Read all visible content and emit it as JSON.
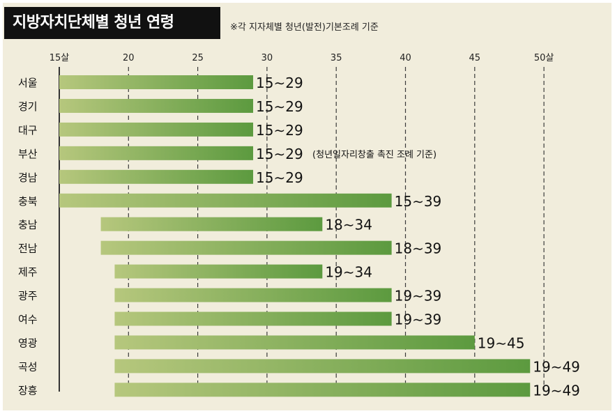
{
  "header": {
    "title": "지방자치단체별 청년 연령",
    "note": "※각 지자체별 청년(발전)기본조례 기준"
  },
  "colors": {
    "background": "#f1eddc",
    "bar_start": "#b6c77d",
    "bar_end": "#5c9a3f",
    "title_bg": "#111111"
  },
  "chart_data": {
    "type": "bar",
    "orientation": "horizontal",
    "title": "지방자치단체별 청년 연령",
    "subtitle": "※각 지자체별 청년(발전)기본조례 기준",
    "xlim": [
      15,
      50
    ],
    "x_ticks": [
      15,
      20,
      25,
      30,
      35,
      40,
      45,
      50
    ],
    "x_tick_labels": [
      "15살",
      "20",
      "25",
      "30",
      "35",
      "40",
      "45",
      "50살"
    ],
    "grid": "dashed vertical",
    "categories": [
      "서울",
      "경기",
      "대구",
      "부산",
      "경남",
      "충북",
      "충남",
      "전남",
      "제주",
      "광주",
      "여수",
      "영광",
      "곡성",
      "장흥"
    ],
    "ranges": [
      {
        "start": 15,
        "end": 29
      },
      {
        "start": 15,
        "end": 29
      },
      {
        "start": 15,
        "end": 29
      },
      {
        "start": 15,
        "end": 29
      },
      {
        "start": 15,
        "end": 29
      },
      {
        "start": 15,
        "end": 39
      },
      {
        "start": 18,
        "end": 34
      },
      {
        "start": 18,
        "end": 39
      },
      {
        "start": 19,
        "end": 34
      },
      {
        "start": 19,
        "end": 39
      },
      {
        "start": 19,
        "end": 39
      },
      {
        "start": 19,
        "end": 45
      },
      {
        "start": 19,
        "end": 49
      },
      {
        "start": 19,
        "end": 49
      }
    ],
    "labels": [
      "15∼29",
      "15∼29",
      "15∼29",
      "15∼29",
      "15∼29",
      "15∼39",
      "18∼34",
      "18∼39",
      "19∼34",
      "19∼39",
      "19∼39",
      "19∼45",
      "19∼49",
      "19∼49"
    ],
    "annotations": [
      {
        "category": "부산",
        "text": "(청년일자리창출 촉진 조례 기준)"
      }
    ]
  }
}
